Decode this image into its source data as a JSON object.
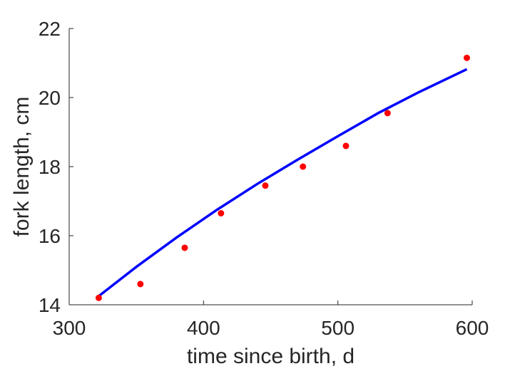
{
  "chart_data": {
    "type": "scatter",
    "xlabel": "time since birth, d",
    "ylabel": "fork length, cm",
    "xlim": [
      300,
      600
    ],
    "ylim": [
      14,
      22
    ],
    "xticks": [
      300,
      400,
      500,
      600
    ],
    "yticks": [
      14,
      16,
      18,
      20,
      22
    ],
    "grid": false,
    "legend": "none",
    "series": [
      {
        "kind": "points",
        "color": "#ff0000",
        "x": [
          322,
          353,
          386,
          413,
          446,
          474,
          506,
          537,
          596
        ],
        "y": [
          14.2,
          14.6,
          15.65,
          16.65,
          17.45,
          18.0,
          18.6,
          19.55,
          21.15
        ]
      },
      {
        "kind": "line",
        "color": "#0000ff",
        "x": [
          322,
          350,
          380,
          410,
          440,
          470,
          500,
          530,
          560,
          596
        ],
        "y": [
          14.25,
          15.1,
          15.95,
          16.75,
          17.5,
          18.2,
          18.88,
          19.55,
          20.15,
          20.82
        ]
      }
    ]
  }
}
